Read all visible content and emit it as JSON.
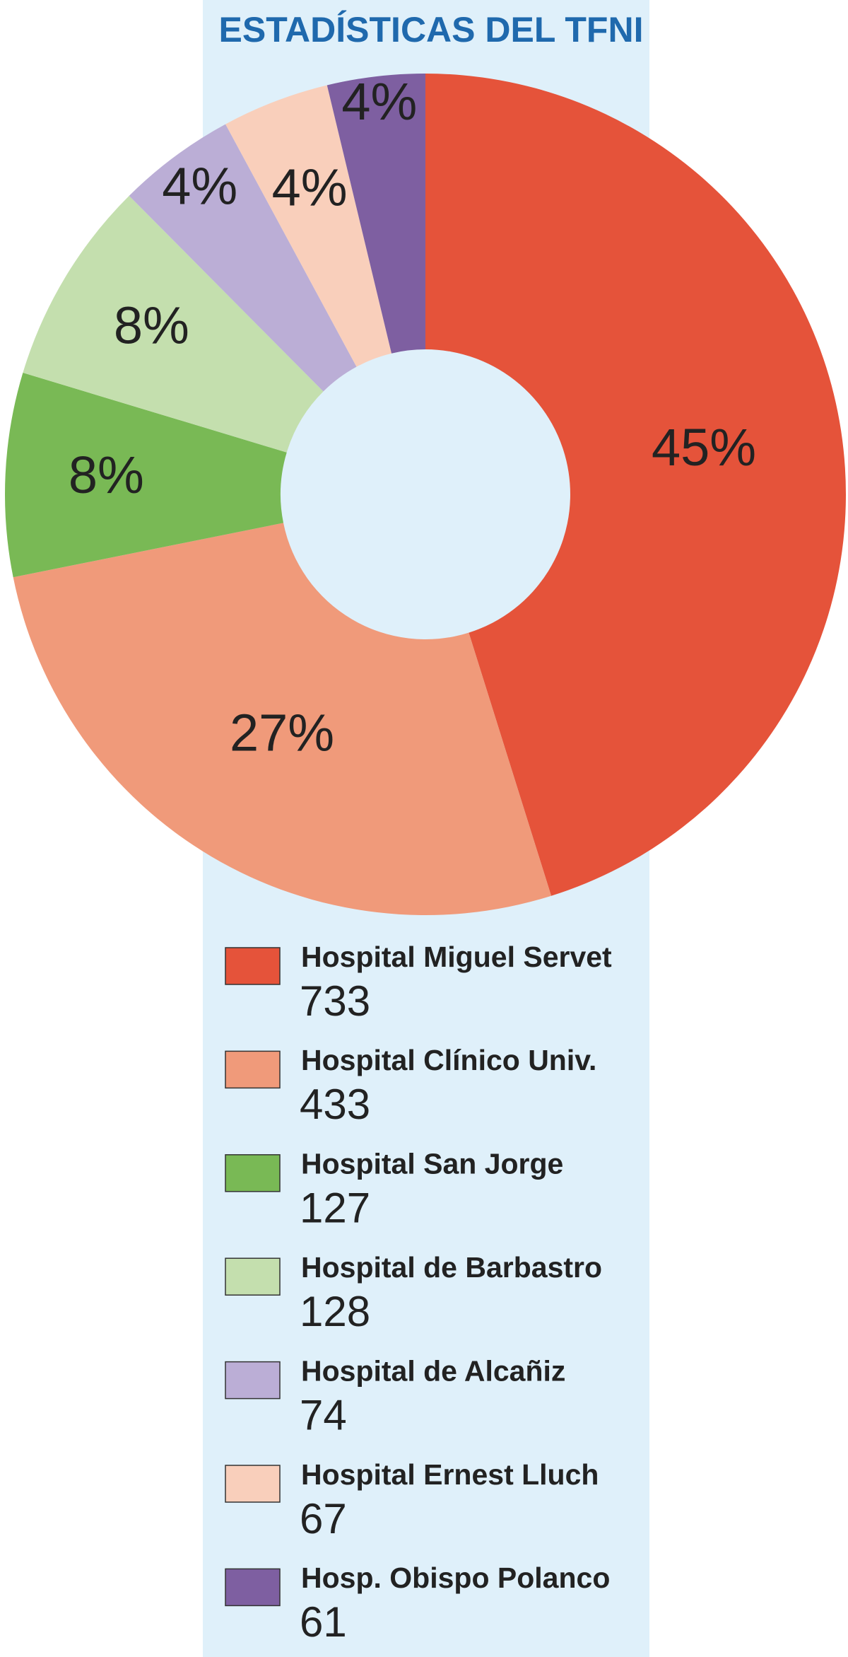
{
  "chart_data": {
    "type": "donut",
    "title": "ESTADÍSTICAS DEL TFNI",
    "categories": [
      "Hospital Miguel Servet",
      "Hospital Clínico Univ.",
      "Hospital San Jorge",
      "Hospital de Barbastro",
      "Hospital de Alcañiz",
      "Hospital Ernest Lluch",
      "Hosp. Obispo Polanco"
    ],
    "values": [
      733,
      433,
      127,
      128,
      74,
      67,
      61
    ],
    "value_labels": [
      "45%",
      "27%",
      "8%",
      "8%",
      "4%",
      "4%",
      "4%"
    ],
    "colors": [
      "#e5533a",
      "#f09a7a",
      "#79b955",
      "#c4dfae",
      "#bbaed6",
      "#f9cfbb",
      "#7e5fa1"
    ]
  }
}
